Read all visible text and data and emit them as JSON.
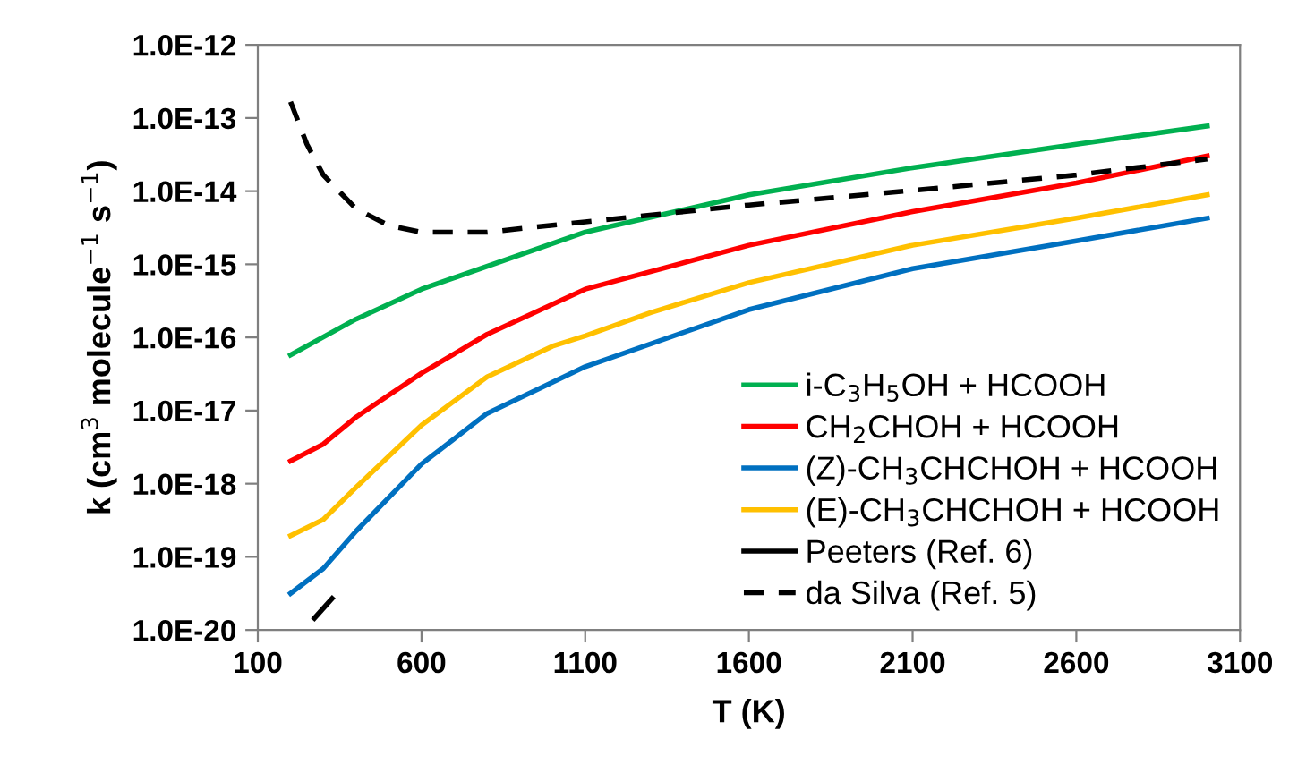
{
  "chart_data": {
    "type": "line",
    "xlabel": "T (K)",
    "ylabel": "k (cm$^{3}$ molecule$^{−1}$ s$^{−1}$)",
    "log": "y",
    "grid": false,
    "legend": "bottom right",
    "marker": "none",
    "xlim": [
      100,
      3100
    ],
    "xticks": [
      100,
      600,
      1100,
      1600,
      2100,
      2600,
      3100
    ],
    "ylim": [
      1e-20,
      1e-12
    ],
    "yticks": [
      {
        "value": 1e-20,
        "label": "1.0E-20"
      },
      {
        "value": 1e-19,
        "label": "1.0E-19"
      },
      {
        "value": 1e-18,
        "label": "1.0E-18"
      },
      {
        "value": 1e-17,
        "label": "1.0E-17"
      },
      {
        "value": 1e-16,
        "label": "1.0E-16"
      },
      {
        "value": 1e-15,
        "label": "1.0E-15"
      },
      {
        "value": 1e-14,
        "label": "1.0E-14"
      },
      {
        "value": 1e-13,
        "label": "1.0E-13"
      },
      {
        "value": 1e-12,
        "label": "1.0E-12"
      }
    ],
    "series": [
      {
        "name": "i-C$_{3}$H$_{5}$OH + HCOOH",
        "color": "#00b050",
        "line_style": "solid",
        "x": [
          200,
          400,
          600,
          1100,
          1600,
          2100,
          2600,
          3000
        ],
        "values": [
          5.75e-17,
          1.78e-16,
          4.57e-16,
          2.75e-15,
          8.9e-15,
          2.09e-14,
          4.37e-14,
          7.76e-14
        ]
      },
      {
        "name": "CH$_{2}$CHOH + HCOOH",
        "color": "#ff0000",
        "line_style": "solid",
        "x": [
          200,
          300,
          400,
          600,
          800,
          1100,
          1600,
          2100,
          2600,
          3000
        ],
        "values": [
          2.04e-18,
          3.47e-18,
          8.13e-18,
          3.24e-17,
          1.1e-16,
          4.57e-16,
          1.82e-15,
          5.25e-15,
          1.29e-14,
          3.02e-14
        ]
      },
      {
        "name": "(Z)-CH$_{3}$CHCHOH + HCOOH",
        "color": "#0070c0",
        "line_style": "solid",
        "x": [
          200,
          300,
          400,
          600,
          800,
          1100,
          1600,
          2100,
          2600,
          3000
        ],
        "values": [
          3.16e-20,
          6.92e-20,
          2.24e-19,
          1.86e-18,
          9.12e-18,
          3.98e-17,
          2.4e-16,
          8.71e-16,
          2.09e-15,
          4.27e-15
        ]
      },
      {
        "name": "(E)-CH$_{3}$CHCHOH + HCOOH",
        "color": "#ffc000",
        "line_style": "solid",
        "x": [
          200,
          300,
          400,
          600,
          800,
          1000,
          1100,
          1300,
          1600,
          2100,
          2600,
          3000
        ],
        "values": [
          1.95e-19,
          3.24e-19,
          8.91e-19,
          6.31e-18,
          2.88e-17,
          7.59e-17,
          1.05e-16,
          2.19e-16,
          5.62e-16,
          1.82e-15,
          4.27e-15,
          8.91e-15
        ]
      },
      {
        "name": "Peeters (Ref. 6)",
        "color": "#000000",
        "line_style": "solid",
        "x": [
          273,
          327
        ],
        "values": [
          1.45e-20,
          2.69e-20
        ]
      },
      {
        "name": "da Silva (Ref. 5)",
        "color": "#000000",
        "line_style": "dashed",
        "x": [
          200,
          250,
          300,
          400,
          500,
          600,
          800,
          1100,
          1600,
          2100,
          2600,
          3000
        ],
        "values": [
          1.66e-13,
          4.37e-14,
          1.66e-14,
          5.75e-15,
          3.39e-15,
          2.75e-15,
          2.75e-15,
          3.8e-15,
          6.46e-15,
          1.02e-14,
          1.66e-14,
          2.75e-14
        ]
      }
    ]
  }
}
